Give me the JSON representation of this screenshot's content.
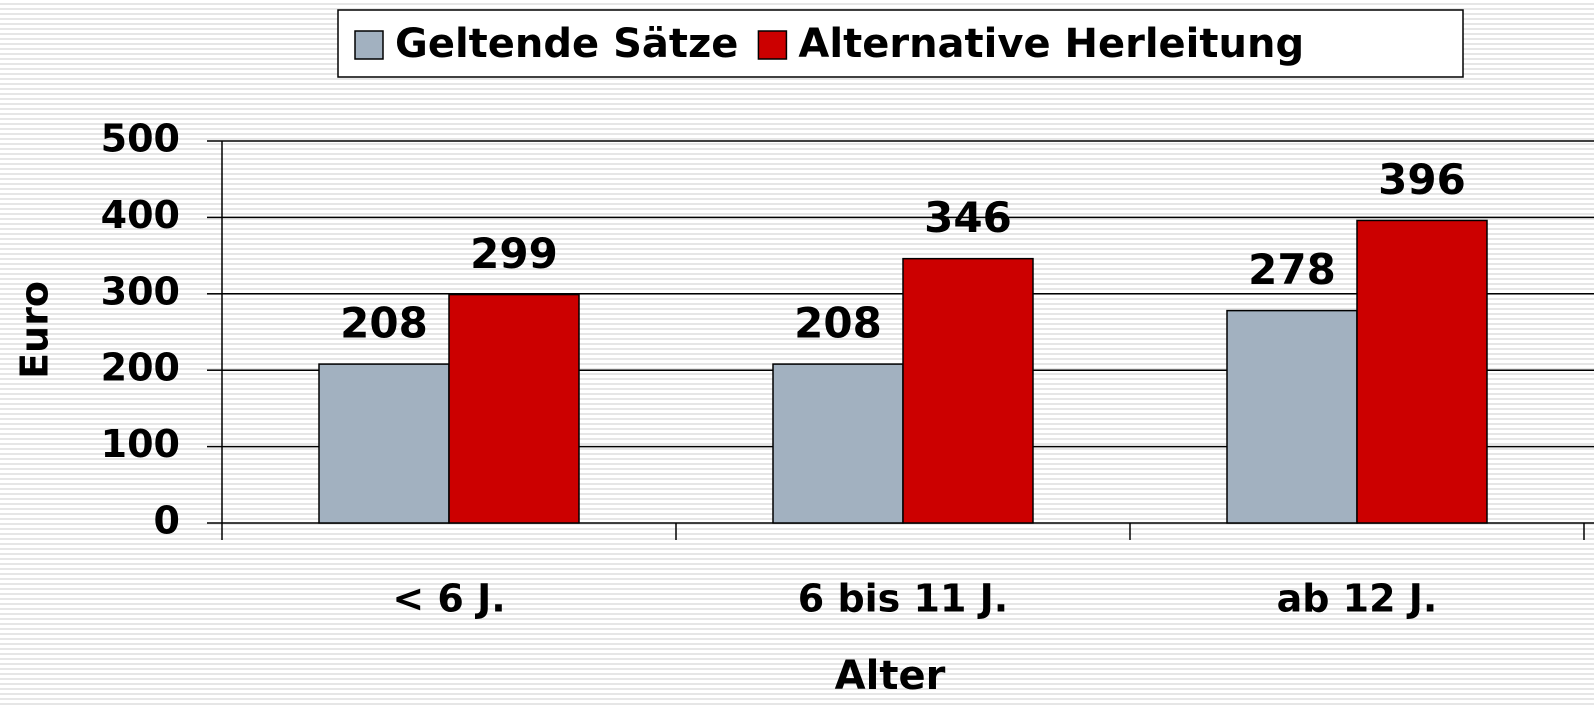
{
  "chart_data": {
    "type": "bar",
    "categories": [
      "< 6 J.",
      "6 bis 11 J.",
      "ab 12 J."
    ],
    "series": [
      {
        "name": "Geltende Sätze",
        "color": "#a2b1c0",
        "values": [
          208,
          208,
          278
        ]
      },
      {
        "name": "Alternative Herleitung",
        "color": "#cc0000",
        "values": [
          299,
          346,
          396
        ]
      }
    ],
    "ylim": [
      0,
      500
    ],
    "yticks": [
      0,
      100,
      200,
      300,
      400,
      500
    ],
    "grid": true,
    "x_label": "Alter",
    "y_label": "Euro",
    "legend": "top"
  }
}
